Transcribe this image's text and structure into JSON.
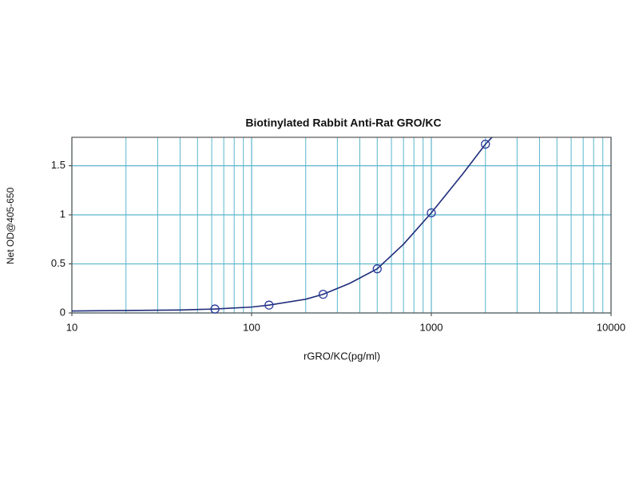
{
  "chart_data": {
    "type": "scatter",
    "title": "Biotinylated Rabbit Anti-Rat GRO/KC",
    "xlabel": "rGRO/KC(pg/ml)",
    "ylabel": "Net OD@405-650",
    "xscale": "log",
    "xlim": [
      10,
      10000
    ],
    "xticks": [
      10,
      100,
      1000,
      10000
    ],
    "ylim": [
      0,
      1.79
    ],
    "yticks": [
      0,
      0.5,
      1,
      1.5
    ],
    "grid": true,
    "minor_grid": true,
    "grid_color": "#5ab6cc",
    "series": [
      {
        "type": "line",
        "color": "#1f2d7a",
        "x": [
          10,
          20,
          40,
          62.5,
          100,
          125,
          200,
          250,
          350,
          500,
          700,
          1000,
          1500,
          2000,
          2200
        ],
        "values": [
          0.02,
          0.025,
          0.03,
          0.04,
          0.06,
          0.08,
          0.14,
          0.19,
          0.3,
          0.45,
          0.7,
          1.02,
          1.42,
          1.72,
          1.8
        ]
      },
      {
        "type": "scatter",
        "color": "#2a3a9a",
        "x": [
          62.5,
          125,
          250,
          500,
          1000,
          2000
        ],
        "values": [
          0.04,
          0.08,
          0.19,
          0.45,
          1.02,
          1.72
        ]
      }
    ]
  }
}
